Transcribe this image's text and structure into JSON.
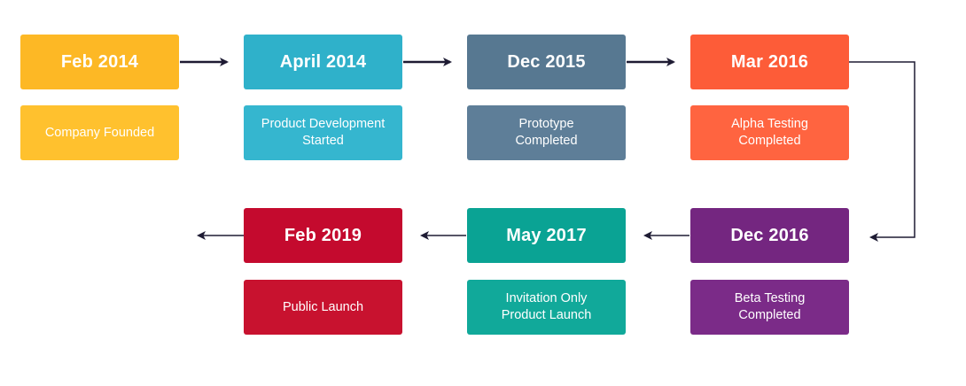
{
  "milestones": [
    {
      "date": "Feb 2014",
      "description": "Company Founded",
      "color": "#FDB825",
      "desc_color": "#FFC12E"
    },
    {
      "date": "April 2014",
      "description": "Product Development\nStarted",
      "color": "#2FB1CA",
      "desc_color": "#35B6CF"
    },
    {
      "date": "Dec 2015",
      "description": "Prototype\nCompleted",
      "color": "#577891",
      "desc_color": "#5E7E98"
    },
    {
      "date": "Mar 2016",
      "description": "Alpha Testing\nCompleted",
      "color": "#FD5C38",
      "desc_color": "#FF6440"
    },
    {
      "date": "Dec 2016",
      "description": "Beta Testing\nCompleted",
      "color": "#742680",
      "desc_color": "#7B2B88"
    },
    {
      "date": "May 2017",
      "description": "Invitation Only\nProduct Launch",
      "color": "#0AA394",
      "desc_color": "#11A99A"
    },
    {
      "date": "Feb 2019",
      "description": "Public Launch",
      "color": "#C40A2E",
      "desc_color": "#C8122F"
    }
  ],
  "arrow_color": "#1E1B33"
}
